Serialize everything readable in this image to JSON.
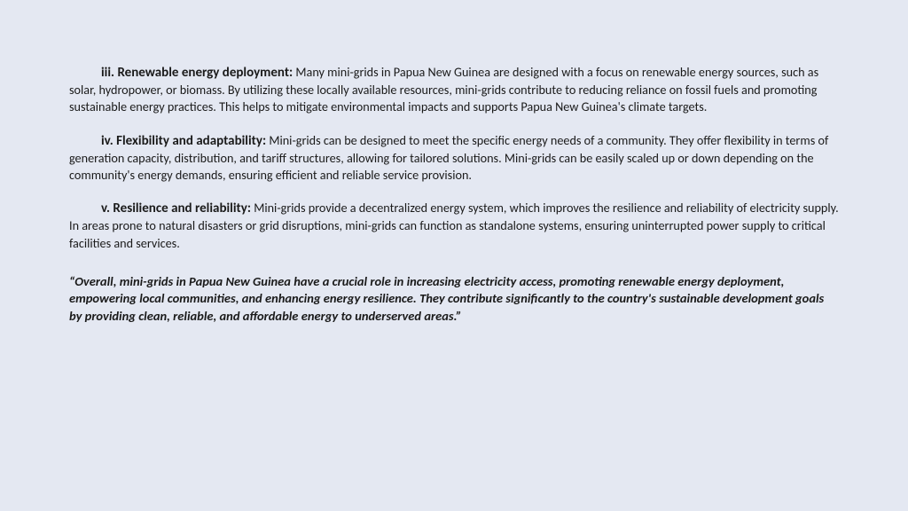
{
  "background_color": "#e4e8f2",
  "text_color": "#1a1a1a",
  "font_family": "Calibri",
  "body_fontsize": 14.2,
  "heading_fontsize": 15,
  "summary_fontsize": 14.5,
  "line_height": 1.35,
  "sections": [
    {
      "heading": "iii. Renewable energy deployment:",
      "body": "Many mini-grids in Papua New Guinea are designed with a focus on renewable energy sources, such as solar, hydropower, or biomass. By utilizing these locally available resources, mini-grids contribute to reducing reliance on fossil fuels and promoting sustainable energy practices. This helps to mitigate environmental impacts and supports Papua New Guinea's climate targets."
    },
    {
      "heading": "iv. Flexibility and adaptability:",
      "body": "Mini-grids can be designed to meet the specific energy needs of a community. They offer flexibility in terms of generation capacity, distribution, and tariff structures, allowing for tailored solutions. Mini-grids can be easily scaled up or down depending on the community's energy demands, ensuring efficient and reliable service provision."
    },
    {
      "heading": "v. Resilience and reliability:",
      "body": "Mini-grids provide a decentralized energy system, which improves the resilience and reliability of electricity supply. In areas prone to natural disasters or grid disruptions, mini-grids can function as standalone systems, ensuring uninterrupted power supply to critical facilities and services."
    }
  ],
  "summary": "“Overall, mini-grids in Papua New Guinea have a crucial role in increasing electricity access, promoting renewable energy deployment, empowering local communities, and enhancing energy resilience. They contribute significantly to the country's sustainable development goals by providing clean, reliable, and affordable energy to underserved areas.”"
}
